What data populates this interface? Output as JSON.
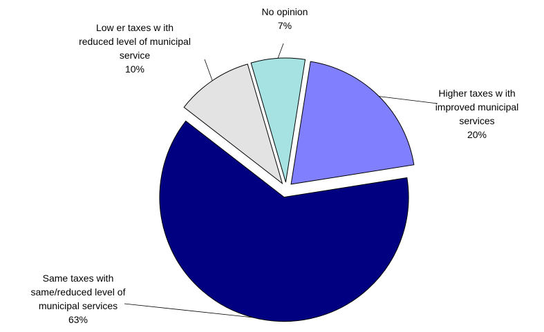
{
  "chart_data": {
    "type": "pie",
    "title": "",
    "slices": [
      {
        "id": "higher",
        "label_lines": [
          "Higher taxes w ith",
          "improved municipal",
          "services"
        ],
        "value": 20,
        "pct_label": "20%",
        "color": "#8080ff"
      },
      {
        "id": "same",
        "label_lines": [
          "Same taxes with",
          "same/reduced level of",
          "municipal services"
        ],
        "value": 63,
        "pct_label": "63%",
        "color": "#000080"
      },
      {
        "id": "lower",
        "label_lines": [
          "Low er taxes w ith",
          "reduced level of municipal",
          "service"
        ],
        "value": 10,
        "pct_label": "10%",
        "color": "#e3e3e3"
      },
      {
        "id": "noopinion",
        "label_lines": [
          "No opinion"
        ],
        "value": 7,
        "pct_label": "7%",
        "color": "#a6e2e2"
      }
    ]
  }
}
